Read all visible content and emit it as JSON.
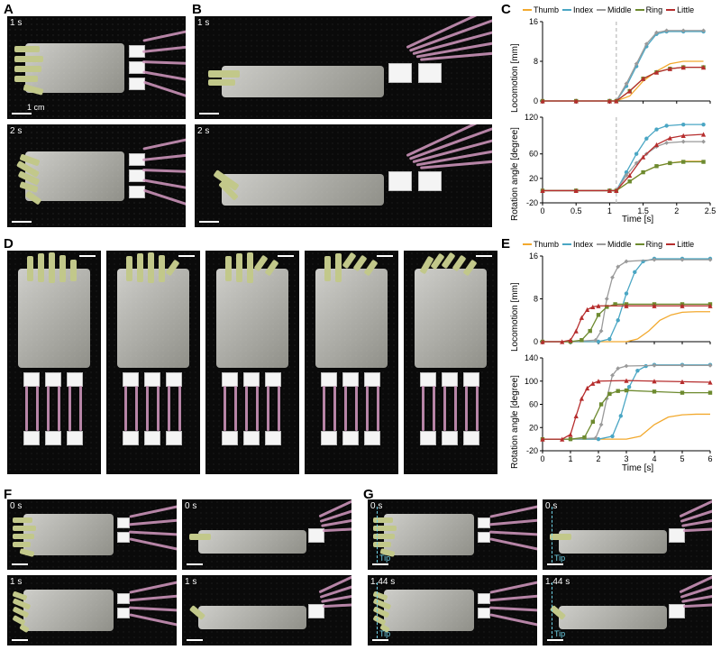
{
  "figure": {
    "panels": {
      "A": {
        "label": "A",
        "times": [
          "1 s",
          "2 s"
        ],
        "scale_label": "1 cm"
      },
      "B": {
        "label": "B",
        "times": [
          "1 s",
          "2 s"
        ]
      },
      "C": {
        "label": "C"
      },
      "D": {
        "label": "D"
      },
      "E": {
        "label": "E"
      },
      "F": {
        "label": "F",
        "times": [
          "0 s",
          "1 s",
          "0 s",
          "1 s"
        ]
      },
      "G": {
        "label": "G",
        "times": [
          "0 s",
          "1.44 s",
          "0 s",
          "1.44 s"
        ],
        "tip": "Tip"
      }
    },
    "fingers": [
      "Thumb",
      "Index",
      "Middle",
      "Ring",
      "Little"
    ],
    "finger_colors": {
      "Thumb": "#f2a92e",
      "Index": "#4aa6c4",
      "Middle": "#9a9a9a",
      "Ring": "#6d8a2f",
      "Little": "#b62d2d"
    },
    "marker_style": {
      "Thumb": {
        "shape": "line",
        "size": 0
      },
      "Index": {
        "shape": "circle",
        "size": 2.2
      },
      "Middle": {
        "shape": "diamond",
        "size": 2.4
      },
      "Ring": {
        "shape": "square",
        "size": 2.2
      },
      "Little": {
        "shape": "triangle",
        "size": 2.6
      }
    },
    "chartC": {
      "xlim": [
        0,
        2.5
      ],
      "xtick_step": 0.5,
      "xlabel": "Time [s]",
      "dash_x": 1.1,
      "locomotion": {
        "ylabel": "Locomotion [mm]",
        "ylim": [
          0,
          16
        ],
        "ytick_step": 8,
        "series": {
          "Thumb": [
            [
              0,
              0
            ],
            [
              0.5,
              0
            ],
            [
              1.0,
              0
            ],
            [
              1.1,
              0
            ],
            [
              1.3,
              1
            ],
            [
              1.5,
              4
            ],
            [
              1.7,
              6
            ],
            [
              1.9,
              7.5
            ],
            [
              2.1,
              8
            ],
            [
              2.4,
              8
            ]
          ],
          "Index": [
            [
              0,
              0
            ],
            [
              0.5,
              0
            ],
            [
              1.0,
              0
            ],
            [
              1.1,
              0
            ],
            [
              1.25,
              3
            ],
            [
              1.4,
              7
            ],
            [
              1.55,
              11
            ],
            [
              1.7,
              13.5
            ],
            [
              1.85,
              14
            ],
            [
              2.1,
              14
            ],
            [
              2.4,
              14
            ]
          ],
          "Middle": [
            [
              0,
              0
            ],
            [
              0.5,
              0
            ],
            [
              1.0,
              0
            ],
            [
              1.1,
              0
            ],
            [
              1.25,
              3.5
            ],
            [
              1.4,
              7.5
            ],
            [
              1.55,
              11.5
            ],
            [
              1.7,
              13.8
            ],
            [
              1.85,
              14.2
            ],
            [
              2.1,
              14.2
            ],
            [
              2.4,
              14.2
            ]
          ],
          "Ring": [
            [
              0,
              0
            ],
            [
              0.5,
              0
            ],
            [
              1.0,
              0
            ],
            [
              1.1,
              0
            ],
            [
              1.3,
              2
            ],
            [
              1.5,
              4.5
            ],
            [
              1.7,
              5.8
            ],
            [
              1.9,
              6.5
            ],
            [
              2.1,
              6.8
            ],
            [
              2.4,
              6.8
            ]
          ],
          "Little": [
            [
              0,
              0
            ],
            [
              0.5,
              0
            ],
            [
              1.0,
              0
            ],
            [
              1.1,
              0
            ],
            [
              1.3,
              2
            ],
            [
              1.5,
              4.5
            ],
            [
              1.7,
              5.8
            ],
            [
              1.9,
              6.5
            ],
            [
              2.1,
              6.8
            ],
            [
              2.4,
              6.8
            ]
          ]
        }
      },
      "rotation": {
        "ylabel": "Rotation angle [degree]",
        "ylim": [
          -20,
          120
        ],
        "yticks": [
          -20,
          20,
          60,
          120
        ],
        "series": {
          "Thumb": [
            [
              0,
              0
            ],
            [
              0.5,
              0
            ],
            [
              1.0,
              0
            ],
            [
              1.1,
              0
            ],
            [
              1.3,
              15
            ],
            [
              1.5,
              30
            ],
            [
              1.7,
              40
            ],
            [
              1.9,
              45
            ],
            [
              2.1,
              48
            ],
            [
              2.4,
              48
            ]
          ],
          "Index": [
            [
              0,
              0
            ],
            [
              0.5,
              0
            ],
            [
              1.0,
              0
            ],
            [
              1.1,
              0
            ],
            [
              1.25,
              30
            ],
            [
              1.4,
              60
            ],
            [
              1.55,
              85
            ],
            [
              1.7,
              100
            ],
            [
              1.85,
              106
            ],
            [
              2.1,
              108
            ],
            [
              2.4,
              108
            ]
          ],
          "Middle": [
            [
              0,
              0
            ],
            [
              0.5,
              0
            ],
            [
              1.0,
              0
            ],
            [
              1.1,
              0
            ],
            [
              1.25,
              25
            ],
            [
              1.4,
              45
            ],
            [
              1.55,
              60
            ],
            [
              1.7,
              72
            ],
            [
              1.85,
              78
            ],
            [
              2.1,
              80
            ],
            [
              2.4,
              80
            ]
          ],
          "Ring": [
            [
              0,
              0
            ],
            [
              0.5,
              0
            ],
            [
              1.0,
              0
            ],
            [
              1.1,
              0
            ],
            [
              1.3,
              15
            ],
            [
              1.5,
              30
            ],
            [
              1.7,
              40
            ],
            [
              1.9,
              45
            ],
            [
              2.1,
              47
            ],
            [
              2.4,
              47
            ]
          ],
          "Little": [
            [
              0,
              0
            ],
            [
              0.5,
              0
            ],
            [
              1.0,
              0
            ],
            [
              1.1,
              0
            ],
            [
              1.3,
              25
            ],
            [
              1.5,
              55
            ],
            [
              1.7,
              75
            ],
            [
              1.9,
              86
            ],
            [
              2.1,
              90
            ],
            [
              2.4,
              92
            ]
          ]
        }
      }
    },
    "chartE": {
      "xlim": [
        0,
        6
      ],
      "xtick_step": 1,
      "xlabel": "Time [s]",
      "locomotion": {
        "ylabel": "Locomotion [mm]",
        "ylim": [
          0,
          16
        ],
        "ytick_step": 8,
        "series": {
          "Thumb": [
            [
              0,
              0
            ],
            [
              1,
              0
            ],
            [
              2,
              0
            ],
            [
              3,
              0
            ],
            [
              3.4,
              0.5
            ],
            [
              3.8,
              2
            ],
            [
              4.2,
              4
            ],
            [
              4.6,
              5
            ],
            [
              5,
              5.5
            ],
            [
              5.5,
              5.6
            ],
            [
              6,
              5.6
            ]
          ],
          "Index": [
            [
              0,
              0
            ],
            [
              1,
              0
            ],
            [
              2,
              0
            ],
            [
              2.4,
              0.5
            ],
            [
              2.7,
              4
            ],
            [
              3.0,
              9
            ],
            [
              3.3,
              13
            ],
            [
              3.6,
              15
            ],
            [
              4,
              15.5
            ],
            [
              5,
              15.5
            ],
            [
              6,
              15.5
            ]
          ],
          "Middle": [
            [
              0,
              0
            ],
            [
              1,
              0
            ],
            [
              1.9,
              0.3
            ],
            [
              2.1,
              2
            ],
            [
              2.3,
              8
            ],
            [
              2.5,
              12
            ],
            [
              2.7,
              14
            ],
            [
              3,
              15
            ],
            [
              4,
              15.3
            ],
            [
              5,
              15.3
            ],
            [
              6,
              15.3
            ]
          ],
          "Ring": [
            [
              0,
              0
            ],
            [
              1,
              0
            ],
            [
              1.4,
              0.3
            ],
            [
              1.7,
              2
            ],
            [
              2.0,
              5
            ],
            [
              2.3,
              6.5
            ],
            [
              2.6,
              7
            ],
            [
              3,
              7
            ],
            [
              4,
              7
            ],
            [
              5,
              7
            ],
            [
              6,
              7
            ]
          ],
          "Little": [
            [
              0,
              0
            ],
            [
              0.7,
              0
            ],
            [
              1.0,
              0.3
            ],
            [
              1.2,
              2
            ],
            [
              1.4,
              4.5
            ],
            [
              1.6,
              6
            ],
            [
              1.8,
              6.5
            ],
            [
              2,
              6.7
            ],
            [
              3,
              6.7
            ],
            [
              4,
              6.7
            ],
            [
              5,
              6.7
            ],
            [
              6,
              6.7
            ]
          ]
        }
      },
      "rotation": {
        "ylabel": "Rotation angle [degree]",
        "ylim": [
          -20,
          140
        ],
        "yticks": [
          -20,
          20,
          60,
          100,
          140
        ],
        "series": {
          "Thumb": [
            [
              0,
              0
            ],
            [
              1,
              0
            ],
            [
              2,
              0
            ],
            [
              3,
              0
            ],
            [
              3.5,
              5
            ],
            [
              4,
              25
            ],
            [
              4.5,
              38
            ],
            [
              5,
              42
            ],
            [
              5.5,
              43
            ],
            [
              6,
              43
            ]
          ],
          "Index": [
            [
              0,
              0
            ],
            [
              1,
              0
            ],
            [
              2,
              0
            ],
            [
              2.5,
              5
            ],
            [
              2.8,
              40
            ],
            [
              3.1,
              90
            ],
            [
              3.4,
              118
            ],
            [
              3.7,
              126
            ],
            [
              4,
              128
            ],
            [
              5,
              128
            ],
            [
              6,
              128
            ]
          ],
          "Middle": [
            [
              0,
              0
            ],
            [
              1,
              0
            ],
            [
              1.9,
              2
            ],
            [
              2.1,
              25
            ],
            [
              2.3,
              70
            ],
            [
              2.5,
              110
            ],
            [
              2.7,
              122
            ],
            [
              3,
              126
            ],
            [
              4,
              127
            ],
            [
              5,
              127
            ],
            [
              6,
              127
            ]
          ],
          "Ring": [
            [
              0,
              0
            ],
            [
              1,
              0
            ],
            [
              1.5,
              3
            ],
            [
              1.8,
              30
            ],
            [
              2.1,
              60
            ],
            [
              2.4,
              78
            ],
            [
              2.7,
              83
            ],
            [
              3,
              84
            ],
            [
              4,
              82
            ],
            [
              5,
              80
            ],
            [
              6,
              80
            ]
          ],
          "Little": [
            [
              0,
              0
            ],
            [
              0.7,
              0
            ],
            [
              1.0,
              8
            ],
            [
              1.2,
              40
            ],
            [
              1.4,
              70
            ],
            [
              1.6,
              88
            ],
            [
              1.8,
              96
            ],
            [
              2,
              100
            ],
            [
              3,
              101
            ],
            [
              4,
              100
            ],
            [
              5,
              99
            ],
            [
              6,
              98
            ]
          ]
        }
      }
    },
    "style": {
      "background_color": "#ffffff",
      "photo_bg": "#0a0a0a",
      "grid_color": "#cccccc",
      "axis_color": "#000000",
      "label_fontsize": 10,
      "legend_fontsize": 9,
      "panel_label_fontsize": 15,
      "line_width": 1.3,
      "marker_size": 2.3,
      "dash_color": "#bbbbbb"
    }
  }
}
